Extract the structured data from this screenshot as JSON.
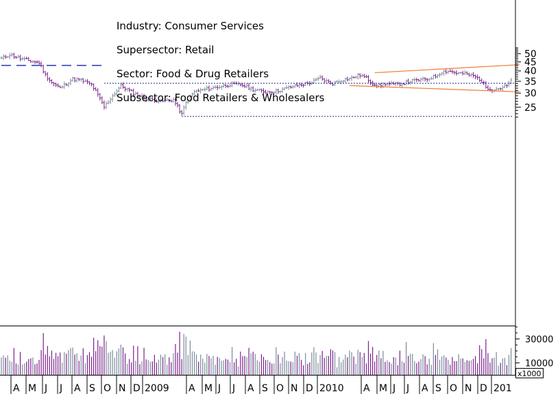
{
  "info": {
    "industry": "Industry: Consumer Services",
    "supersector": "Supersector: Retail",
    "sector": "Sector: Food & Drug Retailers",
    "subsector": "Subsector: Food Retailers & Wholesalers"
  },
  "colors": {
    "up_bar": "#7a8a99",
    "down_bar": "#7a1f8a",
    "channel": "#f07830",
    "support": "#1a237e",
    "dashed_level": "#2233bb",
    "axis": "#000000"
  },
  "chart_data": {
    "type": "ohlc",
    "y_scale": "log",
    "ylim": [
      21,
      54
    ],
    "yticks": [
      25,
      30,
      35,
      40,
      45,
      50
    ],
    "x_labels": [
      "A",
      "M",
      "J",
      "J",
      "A",
      "S",
      "O",
      "N",
      "D",
      "2009",
      "A",
      "M",
      "J",
      "J",
      "A",
      "S",
      "O",
      "N",
      "D",
      "2010",
      "A",
      "M",
      "J",
      "J",
      "A",
      "S",
      "O",
      "N",
      "D",
      "201"
    ],
    "volume": {
      "ticks": [
        "30000",
        "10000"
      ],
      "tick_values": [
        30000,
        10000
      ],
      "unit": "x1000",
      "ylim": [
        0,
        40000
      ]
    },
    "waypoints": [
      [
        0,
        47
      ],
      [
        4,
        49.5
      ],
      [
        9,
        47
      ],
      [
        14,
        45.5
      ],
      [
        18,
        44.5
      ],
      [
        21,
        38
      ],
      [
        24,
        34.5
      ],
      [
        28,
        32
      ],
      [
        34,
        36
      ],
      [
        38,
        35.5
      ],
      [
        43,
        33.5
      ],
      [
        49,
        25
      ],
      [
        53,
        29
      ],
      [
        57,
        33
      ],
      [
        63,
        30
      ],
      [
        69,
        28
      ],
      [
        76,
        27
      ],
      [
        82,
        27.5
      ],
      [
        86,
        22.8
      ],
      [
        88,
        26.5
      ],
      [
        92,
        30.5
      ],
      [
        97,
        31.5
      ],
      [
        103,
        32.5
      ],
      [
        109,
        33.5
      ],
      [
        114,
        33.5
      ],
      [
        120,
        31.5
      ],
      [
        126,
        30.5
      ],
      [
        132,
        31
      ],
      [
        138,
        32.5
      ],
      [
        143,
        33.5
      ],
      [
        148,
        34.5
      ],
      [
        152,
        36.5
      ],
      [
        155,
        35
      ],
      [
        158,
        34
      ],
      [
        162,
        35.5
      ],
      [
        167,
        36.5
      ],
      [
        171,
        38
      ],
      [
        174,
        36.5
      ],
      [
        177,
        34
      ],
      [
        180,
        33
      ],
      [
        183,
        34
      ],
      [
        187,
        33.5
      ],
      [
        191,
        34
      ],
      [
        195,
        35
      ],
      [
        199,
        35.5
      ],
      [
        203,
        36
      ],
      [
        207,
        37.5
      ],
      [
        210,
        39.5
      ],
      [
        213,
        40
      ],
      [
        217,
        39
      ],
      [
        221,
        38.5
      ],
      [
        225,
        37.5
      ],
      [
        228,
        36
      ],
      [
        231,
        32.5
      ],
      [
        234,
        31.5
      ],
      [
        238,
        32
      ],
      [
        241,
        33
      ],
      [
        243,
        35
      ]
    ],
    "dashed_level": {
      "value": 43,
      "from": 0,
      "to": 43
    },
    "resistance_level": {
      "value": 34.1,
      "from": 49,
      "to": 243
    },
    "support_level": {
      "value": 22.2,
      "from": 86,
      "to": 243
    },
    "channel_upper": [
      [
        178,
        39.1
      ],
      [
        247,
        43.4
      ]
    ],
    "channel_lower": [
      [
        166,
        33.1
      ],
      [
        247,
        30.5
      ]
    ]
  }
}
